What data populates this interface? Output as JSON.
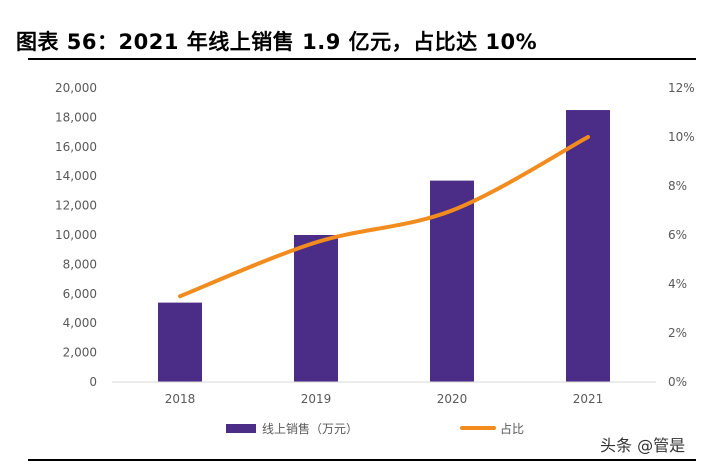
{
  "page": {
    "title": "图表 56：2021 年线上销售 1.9 亿元，占比达 10%",
    "watermark": "头条 @管是"
  },
  "chart_data": {
    "type": "bar",
    "categories": [
      "2018",
      "2019",
      "2020",
      "2021"
    ],
    "series": [
      {
        "name": "线上销售（万元）",
        "type": "bar",
        "axis": "left",
        "values": [
          5400,
          10000,
          13700,
          18500
        ],
        "color": "#4B2C86"
      },
      {
        "name": "占比",
        "type": "line",
        "axis": "right",
        "values": [
          3.5,
          5.7,
          7.0,
          10.0
        ],
        "color": "#F28C1E"
      }
    ],
    "y_left": {
      "min": 0,
      "max": 20000,
      "step": 2000,
      "tick_labels": [
        "0",
        "2,000",
        "4,000",
        "6,000",
        "8,000",
        "10,000",
        "12,000",
        "14,000",
        "16,000",
        "18,000",
        "20,000"
      ]
    },
    "y_right": {
      "min": 0,
      "max": 12,
      "step": 2,
      "tick_labels": [
        "0%",
        "2%",
        "4%",
        "6%",
        "8%",
        "10%",
        "12%"
      ]
    },
    "grid": false,
    "legend": {
      "position": "bottom",
      "entries": [
        "线上销售（万元）",
        "占比"
      ]
    },
    "title": "图表 56：2021 年线上销售 1.9 亿元，占比达 10%",
    "xlabel": "",
    "ylabel": ""
  }
}
